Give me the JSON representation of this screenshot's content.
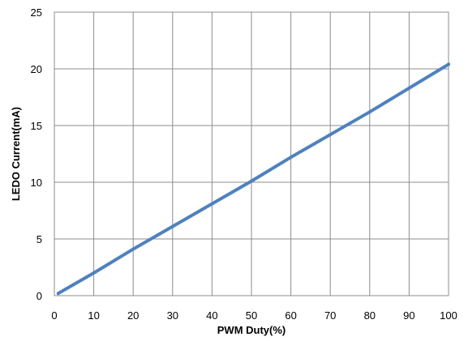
{
  "chart_data": {
    "type": "line",
    "title": "",
    "xlabel": "PWM Duty(%)",
    "ylabel": "LEDO Current(mA)",
    "xlim": [
      0,
      100
    ],
    "ylim": [
      0,
      25
    ],
    "x_ticks": [
      "0",
      "10",
      "20",
      "30",
      "40",
      "50",
      "60",
      "70",
      "80",
      "90",
      "100"
    ],
    "y_ticks": [
      "0",
      "5",
      "10",
      "15",
      "20",
      "25"
    ],
    "grid": true,
    "legend": "none",
    "series": [
      {
        "color": "#4f81bd",
        "x": [
          1,
          5,
          8,
          10,
          20,
          30,
          40,
          50,
          60,
          70,
          80,
          90,
          100
        ],
        "y": [
          0.2,
          1.0,
          1.6,
          2.0,
          4.1,
          6.1,
          8.1,
          10.1,
          12.2,
          14.2,
          16.2,
          18.3,
          20.4
        ]
      }
    ]
  }
}
